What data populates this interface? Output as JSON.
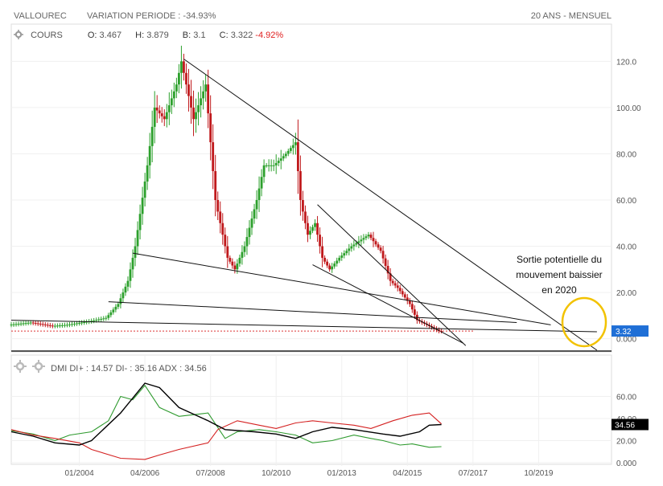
{
  "header": {
    "ticker": "VALLOUREC",
    "variation_label": "VARIATION PERIODE :",
    "variation_value": "-34.93%",
    "period": "20 ANS - MENSUEL"
  },
  "price_legend": {
    "name": "COURS",
    "o_label": "O:",
    "o": "3.467",
    "h_label": "H:",
    "h": "3.879",
    "b_label": "B:",
    "b": "3.1",
    "c_label": "C:",
    "c": "3.322",
    "change": "-4.92%"
  },
  "dmi_legend": {
    "name": "DMI",
    "diplus_label": "DI+ :",
    "diplus": "14.57",
    "diminus_label": "DI- :",
    "diminus": "35.16",
    "adx_label": "ADX :",
    "adx": "34.56"
  },
  "annotation": {
    "line1": "Sortie potentielle du",
    "line2": "mouvement baissier",
    "line3": "en 2020"
  },
  "colors": {
    "up": "#2ca02c",
    "down": "#c0191c",
    "last_price_badge": "#1f6fd6",
    "adx_badge": "#000000",
    "circle": "#f2c200",
    "di_plus": "#2e9a2e",
    "di_minus": "#d42020",
    "adx": "#000000"
  },
  "chart_data": [
    {
      "type": "candlestick",
      "title": "COURS",
      "x_ticks": [
        "01/2004",
        "04/2006",
        "07/2008",
        "10/2010",
        "01/2013",
        "04/2015",
        "07/2017",
        "10/2019"
      ],
      "x_tick_dates": [
        "2004-01",
        "2006-04",
        "2008-07",
        "2010-10",
        "2013-01",
        "2015-04",
        "2017-07",
        "2019-10"
      ],
      "xlim": [
        "2001-09",
        "2022-04"
      ],
      "ylim": [
        -5,
        125
      ],
      "y_ticks": [
        "0.000",
        "20.00",
        "40.00",
        "60.00",
        "80.00",
        "100.00",
        "120.0"
      ],
      "last_price_label": "3.32",
      "reference_dotted_level": 3.32,
      "series": [
        {
          "name": "COURS",
          "points": [
            [
              "2001-09",
              6
            ],
            [
              "2002-06",
              7
            ],
            [
              "2003-03",
              5.5
            ],
            [
              "2003-09",
              6
            ],
            [
              "2004-06",
              7.5
            ],
            [
              "2005-01",
              9
            ],
            [
              "2005-06",
              15
            ],
            [
              "2005-10",
              25
            ],
            [
              "2006-01",
              40
            ],
            [
              "2006-06",
              75
            ],
            [
              "2006-09",
              100
            ],
            [
              "2007-01",
              95
            ],
            [
              "2007-06",
              110
            ],
            [
              "2007-08",
              120
            ],
            [
              "2008-01",
              95
            ],
            [
              "2008-06",
              110
            ],
            [
              "2008-10",
              60
            ],
            [
              "2009-03",
              35
            ],
            [
              "2009-06",
              30
            ],
            [
              "2009-10",
              40
            ],
            [
              "2010-03",
              60
            ],
            [
              "2010-06",
              75
            ],
            [
              "2010-10",
              75
            ],
            [
              "2011-03",
              80
            ],
            [
              "2011-07",
              85
            ],
            [
              "2011-09",
              60
            ],
            [
              "2011-12",
              45
            ],
            [
              "2012-03",
              50
            ],
            [
              "2012-06",
              35
            ],
            [
              "2012-09",
              30
            ],
            [
              "2013-01",
              35
            ],
            [
              "2013-06",
              40
            ],
            [
              "2014-01",
              45
            ],
            [
              "2014-06",
              38
            ],
            [
              "2014-10",
              25
            ],
            [
              "2015-01",
              22
            ],
            [
              "2015-06",
              15
            ],
            [
              "2015-09",
              8
            ],
            [
              "2016-01",
              6
            ],
            [
              "2016-06",
              3.3
            ]
          ]
        }
      ],
      "trendlines": [
        {
          "from": [
            "2007-08",
            121
          ],
          "to": [
            "2021-10",
            -5
          ]
        },
        {
          "from": [
            "2012-03",
            58
          ],
          "to": [
            "2017-04",
            -3
          ]
        },
        {
          "from": [
            "2012-01",
            32
          ],
          "to": [
            "2017-03",
            -2
          ]
        },
        {
          "from": [
            "2005-11",
            37
          ],
          "to": [
            "2020-03",
            6
          ]
        },
        {
          "from": [
            "2005-01",
            16
          ],
          "to": [
            "2019-01",
            7
          ]
        },
        {
          "from": [
            "2001-09",
            8
          ],
          "to": [
            "2021-10",
            3
          ]
        }
      ]
    },
    {
      "type": "line",
      "title": "DMI",
      "ylim": [
        0,
        80
      ],
      "y_ticks": [
        "0.000",
        "20.00",
        "40.00",
        "60.00"
      ],
      "adx_label": "34.56",
      "series": [
        {
          "name": "DI+",
          "points": [
            [
              "2001-09",
              29
            ],
            [
              "2002-06",
              26
            ],
            [
              "2003-03",
              20
            ],
            [
              "2003-09",
              25
            ],
            [
              "2004-06",
              28
            ],
            [
              "2005-01",
              38
            ],
            [
              "2005-06",
              60
            ],
            [
              "2005-11",
              57
            ],
            [
              "2006-04",
              70
            ],
            [
              "2006-10",
              50
            ],
            [
              "2007-06",
              42
            ],
            [
              "2008-06",
              45
            ],
            [
              "2009-01",
              22
            ],
            [
              "2009-06",
              28
            ],
            [
              "2010-03",
              30
            ],
            [
              "2010-10",
              28
            ],
            [
              "2011-06",
              25
            ],
            [
              "2012-01",
              18
            ],
            [
              "2012-09",
              20
            ],
            [
              "2013-06",
              25
            ],
            [
              "2014-01",
              22
            ],
            [
              "2014-06",
              20
            ],
            [
              "2015-01",
              16
            ],
            [
              "2015-06",
              17
            ],
            [
              "2016-01",
              14
            ],
            [
              "2016-06",
              14.57
            ]
          ]
        },
        {
          "name": "DI-",
          "points": [
            [
              "2001-09",
              30
            ],
            [
              "2002-06",
              25
            ],
            [
              "2003-03",
              22
            ],
            [
              "2004-01",
              18
            ],
            [
              "2004-06",
              12
            ],
            [
              "2005-06",
              4
            ],
            [
              "2006-04",
              3
            ],
            [
              "2006-10",
              7
            ],
            [
              "2007-06",
              12
            ],
            [
              "2008-06",
              18
            ],
            [
              "2008-10",
              30
            ],
            [
              "2009-06",
              38
            ],
            [
              "2010-03",
              34
            ],
            [
              "2010-10",
              31
            ],
            [
              "2011-06",
              36
            ],
            [
              "2012-01",
              38
            ],
            [
              "2012-09",
              36
            ],
            [
              "2013-06",
              34
            ],
            [
              "2014-01",
              31
            ],
            [
              "2014-10",
              38
            ],
            [
              "2015-06",
              43
            ],
            [
              "2016-01",
              45
            ],
            [
              "2016-06",
              35.16
            ]
          ]
        },
        {
          "name": "ADX",
          "points": [
            [
              "2001-09",
              28
            ],
            [
              "2002-06",
              24
            ],
            [
              "2003-03",
              18
            ],
            [
              "2004-01",
              16
            ],
            [
              "2004-06",
              20
            ],
            [
              "2005-06",
              45
            ],
            [
              "2006-04",
              72
            ],
            [
              "2006-10",
              68
            ],
            [
              "2007-06",
              50
            ],
            [
              "2008-06",
              38
            ],
            [
              "2009-01",
              30
            ],
            [
              "2010-01",
              28
            ],
            [
              "2010-10",
              26
            ],
            [
              "2011-06",
              22
            ],
            [
              "2012-01",
              28
            ],
            [
              "2012-09",
              32
            ],
            [
              "2013-06",
              30
            ],
            [
              "2014-06",
              26
            ],
            [
              "2015-01",
              24
            ],
            [
              "2015-09",
              28
            ],
            [
              "2016-01",
              34
            ],
            [
              "2016-06",
              34.56
            ]
          ]
        }
      ]
    }
  ]
}
